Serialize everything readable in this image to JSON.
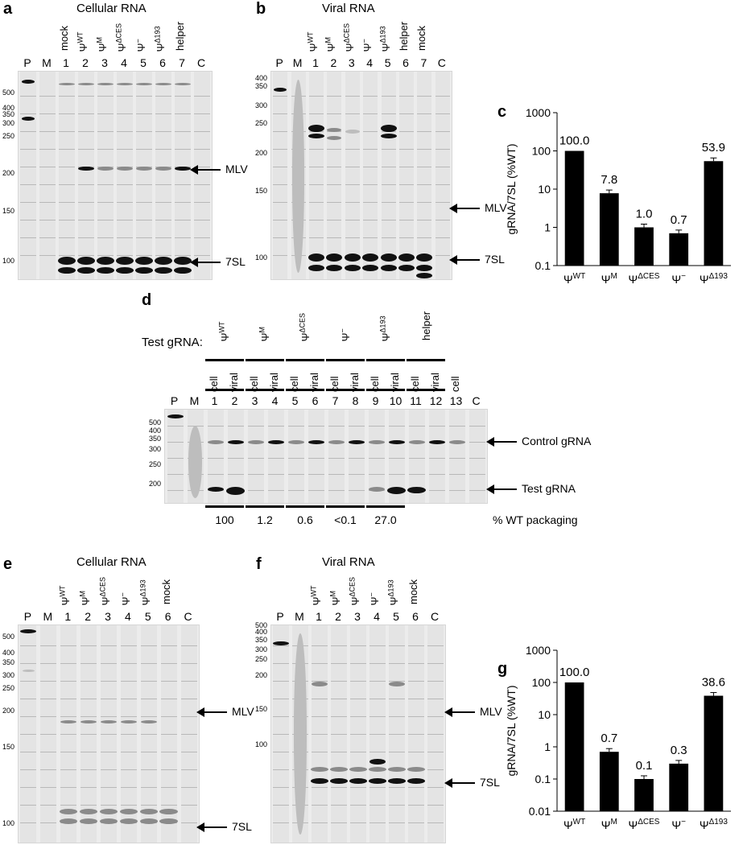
{
  "panels": {
    "a": {
      "letter": "a",
      "title": "Cellular RNA",
      "top_lanes": [
        "mock",
        "ΨWT",
        "ΨM",
        "ΨΔCES",
        "Ψ−",
        "ΨΔ193",
        "helper"
      ],
      "lane_labels": [
        "P",
        "M",
        "1",
        "2",
        "3",
        "4",
        "5",
        "6",
        "7",
        "C"
      ],
      "markers": [
        "500",
        "400",
        "350",
        "300",
        "250",
        "200",
        "150",
        "100"
      ],
      "arrows": [
        "MLV",
        "7SL"
      ]
    },
    "b": {
      "letter": "b",
      "title": "Viral RNA",
      "top_lanes": [
        "ΨWT",
        "ΨM",
        "ΨΔCES",
        "Ψ−",
        "ΨΔ193",
        "helper",
        "mock"
      ],
      "lane_labels": [
        "P",
        "M",
        "1",
        "2",
        "3",
        "4",
        "5",
        "6",
        "7",
        "C"
      ],
      "markers": [
        "400",
        "350",
        "300",
        "250",
        "200",
        "150",
        "100"
      ],
      "arrows": [
        "MLV",
        "7SL"
      ]
    },
    "d": {
      "letter": "d",
      "test_label": "Test gRNA:",
      "groups": [
        "ΨWT",
        "ΨM",
        "ΨΔCES",
        "Ψ−",
        "ΨΔ193",
        "helper"
      ],
      "sub_labels": [
        "cell",
        "viral",
        "cell",
        "viral",
        "cell",
        "viral",
        "cell",
        "viral",
        "cell",
        "viral",
        "cell",
        "viral",
        "cell"
      ],
      "lane_labels": [
        "P",
        "M",
        "1",
        "2",
        "3",
        "4",
        "5",
        "6",
        "7",
        "8",
        "9",
        "10",
        "11",
        "12",
        "13",
        "C"
      ],
      "markers": [
        "500",
        "400",
        "350",
        "300",
        "250",
        "200"
      ],
      "arrows": [
        "Control gRNA",
        "Test gRNA"
      ],
      "packaging": [
        "100",
        "1.2",
        "0.6",
        "<0.1",
        "27.0"
      ],
      "packaging_label": "% WT packaging"
    },
    "e": {
      "letter": "e",
      "title": "Cellular RNA",
      "top_lanes": [
        "ΨWT",
        "ΨM",
        "ΨΔCES",
        "Ψ−",
        "ΨΔ193",
        "mock"
      ],
      "lane_labels": [
        "P",
        "M",
        "1",
        "2",
        "3",
        "4",
        "5",
        "6",
        "C"
      ],
      "markers": [
        "500",
        "400",
        "350",
        "300",
        "250",
        "200",
        "150",
        "100"
      ],
      "arrows": [
        "MLV",
        "7SL"
      ]
    },
    "f": {
      "letter": "f",
      "title": "Viral RNA",
      "top_lanes": [
        "ΨWT",
        "ΨM",
        "ΨΔCES",
        "Ψ−",
        "ΨΔ193",
        "mock"
      ],
      "lane_labels": [
        "P",
        "M",
        "1",
        "2",
        "3",
        "4",
        "5",
        "6",
        "C"
      ],
      "markers": [
        "500",
        "400",
        "350",
        "300",
        "250",
        "200",
        "150",
        "100"
      ],
      "arrows": [
        "MLV",
        "7SL"
      ]
    }
  },
  "chart_data": [
    {
      "panel": "c",
      "type": "bar",
      "ylabel": "gRNA/7SL (%WT)",
      "scale": "log",
      "ylim": [
        0.1,
        1000
      ],
      "yticks": [
        "0.1",
        "1",
        "10",
        "100",
        "1000"
      ],
      "categories": [
        "ΨWT",
        "ΨM",
        "ΨΔCES",
        "Ψ−",
        "ΨΔ193"
      ],
      "values": [
        100.0,
        7.8,
        1.0,
        0.7,
        53.9
      ],
      "value_labels": [
        "100.0",
        "7.8",
        "1.0",
        "0.7",
        "53.9"
      ]
    },
    {
      "panel": "g",
      "type": "bar",
      "ylabel": "gRNA/7SL (%WT)",
      "scale": "log",
      "ylim": [
        0.01,
        1000
      ],
      "yticks": [
        "0.01",
        "0.1",
        "1",
        "10",
        "100",
        "1000"
      ],
      "categories": [
        "ΨWT",
        "ΨM",
        "ΨΔCES",
        "Ψ−",
        "ΨΔ193"
      ],
      "values": [
        100.0,
        0.7,
        0.1,
        0.3,
        38.6
      ],
      "value_labels": [
        "100.0",
        "0.7",
        "0.1",
        "0.3",
        "38.6"
      ]
    }
  ]
}
